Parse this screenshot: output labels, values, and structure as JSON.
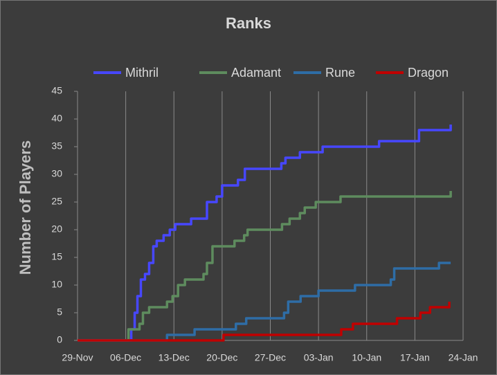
{
  "chart_data": {
    "type": "line",
    "title": "Ranks",
    "y_label": "Number of Players",
    "step": true,
    "xlim": [
      0,
      56
    ],
    "xticks": [
      {
        "value": 0,
        "label": "29-Nov"
      },
      {
        "value": 7,
        "label": "06-Dec"
      },
      {
        "value": 14,
        "label": "13-Dec"
      },
      {
        "value": 21,
        "label": "20-Dec"
      },
      {
        "value": 28,
        "label": "27-Dec"
      },
      {
        "value": 35,
        "label": "03-Jan"
      },
      {
        "value": 42,
        "label": "10-Jan"
      },
      {
        "value": 49,
        "label": "17-Jan"
      },
      {
        "value": 56,
        "label": "24-Jan"
      }
    ],
    "ylim": [
      0,
      45
    ],
    "yticks": [
      0,
      5,
      10,
      15,
      20,
      25,
      30,
      35,
      40,
      45
    ],
    "grid": "x",
    "legend": "top",
    "series": [
      {
        "name": "Mithril",
        "color": "#4747ff",
        "x": [
          0,
          7.4,
          7.8,
          8.3,
          8.7,
          9.2,
          9.8,
          10.4,
          11,
          11.5,
          12.5,
          13.4,
          14.2,
          16.5,
          18.8,
          20.2,
          21,
          23.3,
          24.3,
          29.6,
          30.2,
          32.3,
          35.6,
          43.8,
          49.6,
          54.2
        ],
        "values": [
          0,
          0,
          2,
          5,
          8,
          11,
          12,
          14,
          17,
          18,
          19,
          20,
          21,
          22,
          25,
          26,
          28,
          29,
          31,
          32,
          33,
          34,
          35,
          36,
          38,
          39
        ]
      },
      {
        "name": "Adamant",
        "color": "#5e8c5e",
        "x": [
          0,
          7.4,
          9,
          9.5,
          10.4,
          13,
          13.8,
          14.6,
          15.6,
          18.3,
          18.8,
          19.6,
          22.8,
          24.2,
          24.7,
          29.7,
          30.8,
          32.3,
          33,
          34.6,
          38.2,
          54.2
        ],
        "values": [
          0,
          2,
          3,
          5,
          6,
          7,
          8,
          10,
          11,
          12,
          14,
          17,
          18,
          19,
          20,
          21,
          22,
          23,
          24,
          25,
          26,
          27
        ]
      },
      {
        "name": "Rune",
        "color": "#2e6da6",
        "x": [
          0,
          13,
          17,
          23,
          24.5,
          30,
          30.6,
          32.4,
          35,
          40.3,
          45.5,
          46,
          52.5,
          54.2
        ],
        "values": [
          0,
          1,
          2,
          3,
          4,
          5,
          7,
          8,
          9,
          10,
          11,
          13,
          14,
          14
        ]
      },
      {
        "name": "Dragon",
        "color": "#c00000",
        "x": [
          0,
          21.2,
          38.3,
          40,
          46.4,
          49.8,
          51.2,
          54
        ],
        "values": [
          0,
          1,
          2,
          3,
          4,
          5,
          6,
          7
        ]
      }
    ]
  }
}
